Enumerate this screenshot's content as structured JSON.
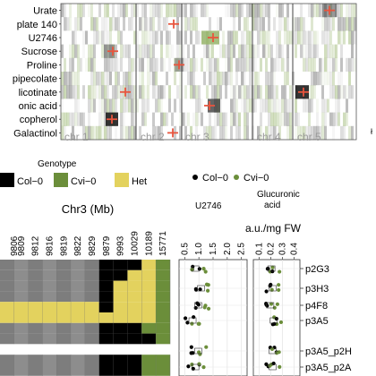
{
  "heatmap": {
    "rows": [
      "Urate",
      "plate 140",
      "U2746",
      "Sucrose",
      "Proline",
      "pipecolate",
      "licotinate",
      "onic acid",
      "copherol",
      "Galactinol"
    ],
    "chromosomes": [
      "chr 1",
      "chr 2",
      "chr 3",
      "chr 4",
      "chr 5"
    ],
    "peaks": [
      {
        "row": "Urate",
        "chromosome": "chr 5"
      },
      {
        "row": "plate 140",
        "chromosome": "chr 2"
      },
      {
        "row": "U2746",
        "chromosome": "chr 3"
      },
      {
        "row": "Sucrose",
        "chromosome": "chr 1"
      },
      {
        "row": "Proline",
        "chromosome": "chr 3"
      },
      {
        "row": "licotinate",
        "chromosome": "chr 2"
      },
      {
        "row": "licotinate",
        "chromosome": "chr 5"
      },
      {
        "row": "onic acid",
        "chromosome": "chr 3"
      },
      {
        "row": "copherol",
        "chromosome": "chr 1"
      },
      {
        "row": "Galactinol",
        "chromosome": "chr 2"
      }
    ],
    "colors": {
      "grey": "#7a7a7a",
      "green": "#7fa24a",
      "peak": "#e8553e"
    }
  },
  "genotype_legend": {
    "title": "Genotype",
    "items": [
      {
        "label": "Col−0",
        "color": "#000000"
      },
      {
        "label": "Cvi−0",
        "color": "#6b8e3a"
      },
      {
        "label": "Het",
        "color": "#e3d25e"
      }
    ]
  },
  "mosaic": {
    "title": "Chr3 (Mb)",
    "positions": [
      "9806",
      "9809",
      "9812",
      "9816",
      "9819",
      "9822",
      "9829",
      "9879",
      "9993",
      "10029",
      "10189",
      "15771"
    ],
    "rows": [
      [
        "",
        "",
        "",
        "",
        "",
        "",
        "",
        "col",
        "col",
        "col",
        "het",
        "cvi"
      ],
      [
        "",
        "",
        "",
        "",
        "",
        "",
        "",
        "col",
        "col",
        "het",
        "het",
        "cvi"
      ],
      [
        "",
        "",
        "",
        "",
        "",
        "",
        "",
        "col",
        "het",
        "het",
        "het",
        "cvi"
      ],
      [
        "",
        "",
        "",
        "",
        "",
        "",
        "",
        "col",
        "het",
        "het",
        "het",
        "cvi"
      ],
      [
        "het",
        "het",
        "het",
        "het",
        "het",
        "het",
        "het",
        "col",
        "het",
        "het",
        "het",
        "cvi"
      ],
      [
        "het",
        "het",
        "het",
        "het",
        "het",
        "het",
        "het",
        "het",
        "het",
        "het",
        "het",
        "cvi"
      ],
      [
        "",
        "",
        "",
        "",
        "",
        "",
        "",
        "col",
        "col",
        "col",
        "cvi",
        "cvi"
      ],
      [
        "",
        "",
        "",
        "",
        "",
        "",
        "",
        "col",
        "col",
        "col",
        "col",
        "cvi"
      ],
      [
        "",
        "",
        "",
        "",
        "",
        "",
        "",
        "",
        "",
        "",
        "",
        ""
      ],
      [
        "",
        "",
        "",
        "",
        "",
        "",
        "",
        "col",
        "col",
        "col",
        "cvi",
        "cvi"
      ],
      [
        "",
        "",
        "",
        "",
        "",
        "",
        "",
        "col",
        "col",
        "col",
        "cvi",
        "cvi"
      ]
    ]
  },
  "points_legend": {
    "items": [
      {
        "label": "Col−0",
        "color": "#000000"
      },
      {
        "label": "Cvi−0",
        "color": "#6b8e3a"
      }
    ]
  },
  "strip_plots": {
    "unit_label": "a.u./mg FW",
    "panels": [
      {
        "title": "U2746",
        "ticks": [
          "0.5",
          "1.0",
          "1.5",
          "2.0",
          "2.5"
        ],
        "xlim": [
          0.3,
          2.7
        ]
      },
      {
        "title": "Glucuronic acid",
        "ticks": [
          "0.1",
          "0.2",
          "0.3",
          "0.4"
        ],
        "xlim": [
          0.05,
          0.45
        ]
      }
    ],
    "lines": [
      "p2G3",
      "p3H3",
      "p4F8",
      "p3A5",
      "p3A5_p2H",
      "p3A5_p2A"
    ]
  },
  "extra_text": {
    "right_edge": "ł"
  }
}
